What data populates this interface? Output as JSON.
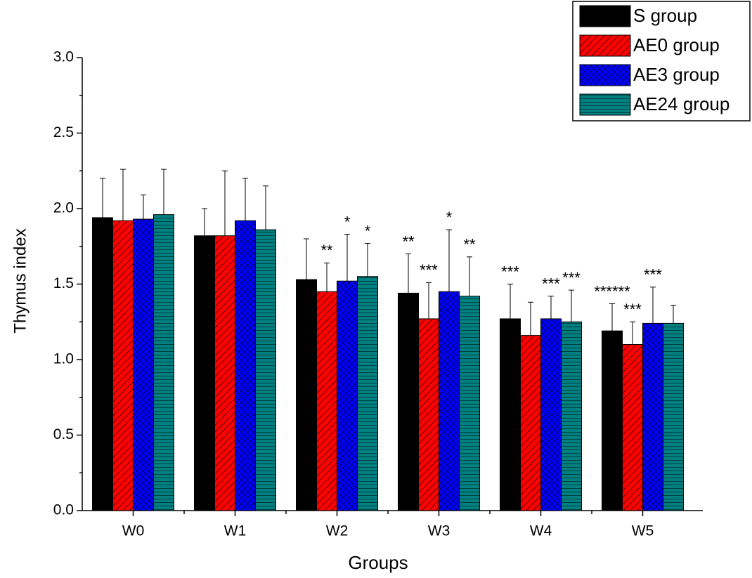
{
  "chart_data": {
    "type": "bar",
    "x_label": "Groups",
    "y_label": "Thymus index",
    "categories": [
      "W0",
      "W1",
      "W2",
      "W3",
      "W4",
      "W5"
    ],
    "series": [
      {
        "name": "S group",
        "color": "#000000",
        "hatch": "none",
        "values": [
          1.94,
          1.82,
          1.53,
          1.44,
          1.27,
          1.19
        ],
        "errors": [
          0.26,
          0.18,
          0.27,
          0.26,
          0.23,
          0.18
        ]
      },
      {
        "name": "AE0 group",
        "color": "#ff0000",
        "hatch": "diagonal",
        "values": [
          1.92,
          1.82,
          1.45,
          1.27,
          1.16,
          1.1
        ],
        "errors": [
          0.34,
          0.43,
          0.19,
          0.24,
          0.22,
          0.15
        ]
      },
      {
        "name": "AE3 group",
        "color": "#0000ff",
        "hatch": "cross",
        "values": [
          1.93,
          1.92,
          1.52,
          1.45,
          1.27,
          1.24
        ],
        "errors": [
          0.16,
          0.28,
          0.31,
          0.41,
          0.15,
          0.24
        ]
      },
      {
        "name": "AE24 group",
        "color": "#008080",
        "hatch": "horizontal",
        "values": [
          1.96,
          1.86,
          1.55,
          1.42,
          1.25,
          1.24
        ],
        "errors": [
          0.3,
          0.29,
          0.22,
          0.26,
          0.21,
          0.12
        ]
      }
    ],
    "annotations": [
      {
        "text": "**",
        "category": 2,
        "series": 1
      },
      {
        "text": "*",
        "category": 2,
        "series": 2
      },
      {
        "text": "*",
        "category": 2,
        "series": 3
      },
      {
        "text": "**",
        "category": 3,
        "series": 0
      },
      {
        "text": "***",
        "category": 3,
        "series": 1
      },
      {
        "text": "*",
        "category": 3,
        "series": 2
      },
      {
        "text": "**",
        "category": 3,
        "series": 3
      },
      {
        "text": "***",
        "category": 4,
        "series": 0
      },
      {
        "text": "***",
        "category": 4,
        "series": 2
      },
      {
        "text": "***",
        "category": 4,
        "series": 3
      },
      {
        "text": "******",
        "category": 5,
        "series": 0
      },
      {
        "text": "***",
        "category": 5,
        "series": 1
      },
      {
        "text": "***",
        "category": 5,
        "series": 2
      }
    ],
    "ylim": [
      0,
      3.0
    ],
    "yticks": [
      {
        "value": 0,
        "label": "0.0"
      },
      0.5,
      {
        "value": 1,
        "label": "1.0"
      },
      1.5,
      {
        "value": 2,
        "label": "2.0"
      },
      2.5,
      {
        "value": 3,
        "label": "3.0"
      }
    ],
    "legend": "upper right",
    "grid": false
  }
}
